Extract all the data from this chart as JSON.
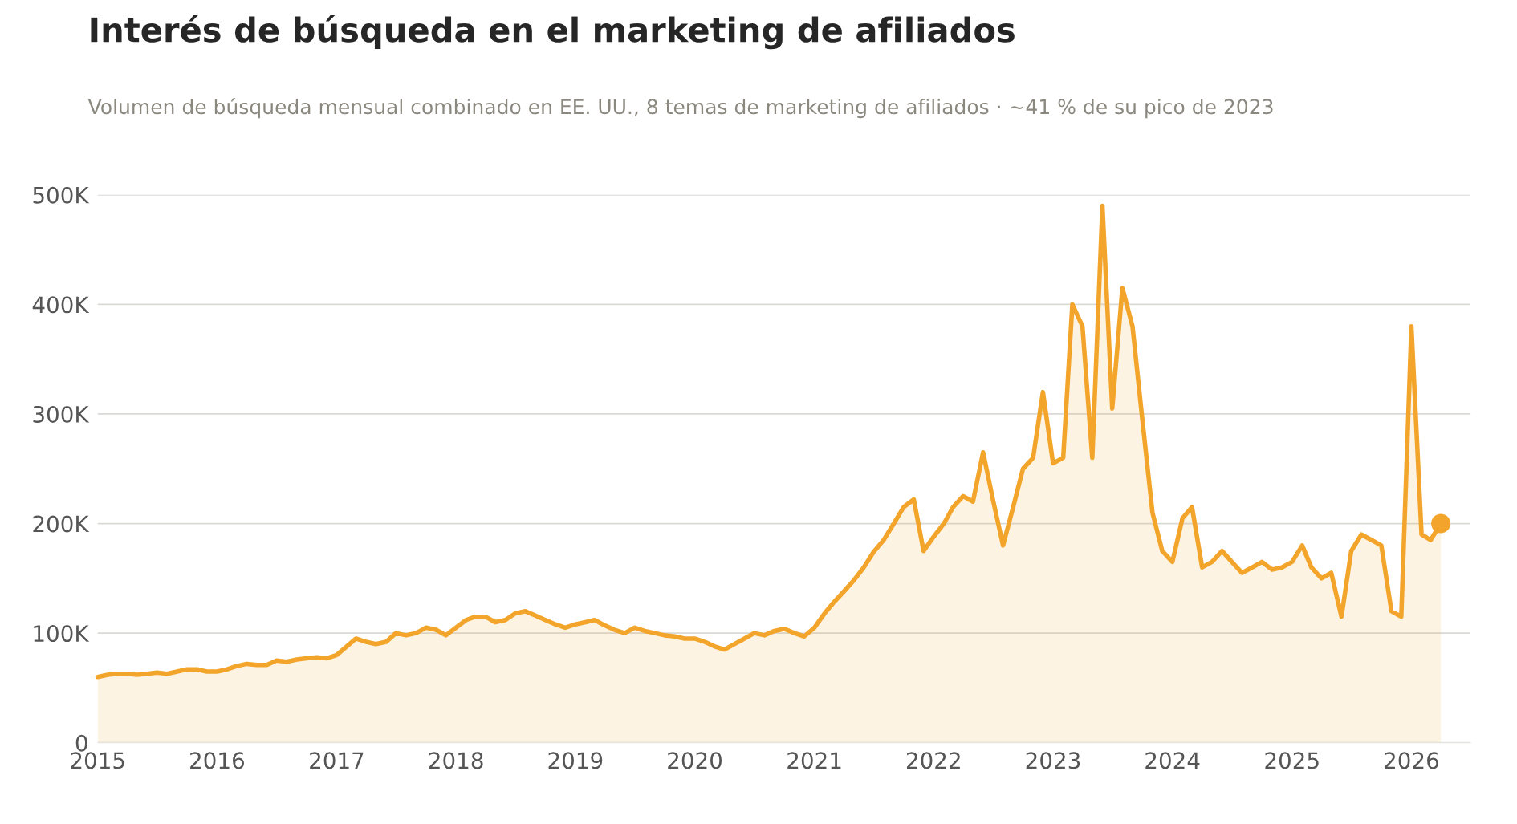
{
  "chart_data": {
    "type": "area",
    "title": "Interés de búsqueda en el marketing de afiliados",
    "subtitle": "Volumen de búsqueda mensual combinado en EE. UU., 8 temas de marketing de afiliados · ~41 % de su pico de 2023",
    "x": [
      "2015-01",
      "2015-02",
      "2015-03",
      "2015-04",
      "2015-05",
      "2015-06",
      "2015-07",
      "2015-08",
      "2015-09",
      "2015-10",
      "2015-11",
      "2015-12",
      "2016-01",
      "2016-02",
      "2016-03",
      "2016-04",
      "2016-05",
      "2016-06",
      "2016-07",
      "2016-08",
      "2016-09",
      "2016-10",
      "2016-11",
      "2016-12",
      "2017-01",
      "2017-02",
      "2017-03",
      "2017-04",
      "2017-05",
      "2017-06",
      "2017-07",
      "2017-08",
      "2017-09",
      "2017-10",
      "2017-11",
      "2017-12",
      "2018-01",
      "2018-02",
      "2018-03",
      "2018-04",
      "2018-05",
      "2018-06",
      "2018-07",
      "2018-08",
      "2018-09",
      "2018-10",
      "2018-11",
      "2018-12",
      "2019-01",
      "2019-02",
      "2019-03",
      "2019-04",
      "2019-05",
      "2019-06",
      "2019-07",
      "2019-08",
      "2019-09",
      "2019-10",
      "2019-11",
      "2019-12",
      "2020-01",
      "2020-02",
      "2020-03",
      "2020-04",
      "2020-05",
      "2020-06",
      "2020-07",
      "2020-08",
      "2020-09",
      "2020-10",
      "2020-11",
      "2020-12",
      "2021-01",
      "2021-02",
      "2021-03",
      "2021-04",
      "2021-05",
      "2021-06",
      "2021-07",
      "2021-08",
      "2021-09",
      "2021-10",
      "2021-11",
      "2021-12",
      "2022-01",
      "2022-02",
      "2022-03",
      "2022-04",
      "2022-05",
      "2022-06",
      "2022-07",
      "2022-08",
      "2022-09",
      "2022-10",
      "2022-11",
      "2022-12",
      "2023-01",
      "2023-02",
      "2023-03",
      "2023-04",
      "2023-05",
      "2023-06",
      "2023-07",
      "2023-08",
      "2023-09",
      "2023-10",
      "2023-11",
      "2023-12",
      "2024-01",
      "2024-02",
      "2024-03",
      "2024-04",
      "2024-05",
      "2024-06",
      "2024-07",
      "2024-08",
      "2024-09",
      "2024-10",
      "2024-11",
      "2024-12",
      "2025-01",
      "2025-02",
      "2025-03",
      "2025-04",
      "2025-05",
      "2025-06",
      "2025-07",
      "2025-08",
      "2025-09",
      "2025-10",
      "2025-11",
      "2025-12",
      "2026-01",
      "2026-02",
      "2026-03",
      "2026-04"
    ],
    "series": [
      {
        "color": "#f2a52a",
        "values": [
          60000,
          62000,
          63000,
          63000,
          62000,
          63000,
          64000,
          63000,
          65000,
          67000,
          67000,
          65000,
          65000,
          67000,
          70000,
          72000,
          71000,
          71000,
          75000,
          74000,
          76000,
          77000,
          78000,
          77000,
          80000,
          88000,
          95000,
          92000,
          90000,
          92000,
          100000,
          98000,
          100000,
          105000,
          103000,
          98000,
          105000,
          112000,
          115000,
          115000,
          110000,
          112000,
          118000,
          120000,
          116000,
          112000,
          108000,
          105000,
          108000,
          110000,
          112000,
          107000,
          103000,
          100000,
          105000,
          102000,
          100000,
          98000,
          97000,
          95000,
          95000,
          92000,
          88000,
          85000,
          90000,
          95000,
          100000,
          98000,
          102000,
          104000,
          100000,
          97000,
          105000,
          118000,
          128000,
          138000,
          148000,
          160000,
          174000,
          185000,
          200000,
          215000,
          222000,
          175000,
          188000,
          200000,
          215000,
          225000,
          220000,
          265000,
          222000,
          180000,
          215000,
          250000,
          260000,
          320000,
          255000,
          260000,
          400000,
          380000,
          260000,
          490000,
          305000,
          415000,
          380000,
          295000,
          210000,
          175000,
          165000,
          205000,
          215000,
          160000,
          165000,
          175000,
          165000,
          155000,
          160000,
          165000,
          158000,
          160000,
          165000,
          180000,
          160000,
          150000,
          155000,
          115000,
          175000,
          190000,
          185000,
          180000,
          120000,
          115000,
          380000,
          190000,
          185000,
          200000
        ]
      },
      {
        "type": "scatter",
        "color": "#f2a52a",
        "x": [
          "2026-04"
        ],
        "values": [
          200000
        ]
      }
    ],
    "xlim": [
      "2015-01",
      "2026-07"
    ],
    "xticks": [
      {
        "value": "2015-01",
        "label": "2015"
      },
      {
        "value": "2016-01",
        "label": "2016"
      },
      {
        "value": "2017-01",
        "label": "2017"
      },
      {
        "value": "2018-01",
        "label": "2018"
      },
      {
        "value": "2019-01",
        "label": "2019"
      },
      {
        "value": "2020-01",
        "label": "2020"
      },
      {
        "value": "2021-01",
        "label": "2021"
      },
      {
        "value": "2022-01",
        "label": "2022"
      },
      {
        "value": "2023-01",
        "label": "2023"
      },
      {
        "value": "2024-01",
        "label": "2024"
      },
      {
        "value": "2025-01",
        "label": "2025"
      },
      {
        "value": "2026-01",
        "label": "2026"
      }
    ],
    "ylim": [
      0,
      500000
    ],
    "yticks": [
      {
        "value": 0,
        "label": "0"
      },
      {
        "value": 100000,
        "label": "100K"
      },
      {
        "value": 200000,
        "label": "200K"
      },
      {
        "value": 300000,
        "label": "300K"
      },
      {
        "value": 400000,
        "label": "400K"
      },
      {
        "value": 500000,
        "label": "500K"
      }
    ],
    "grid": "y",
    "legend": false
  }
}
